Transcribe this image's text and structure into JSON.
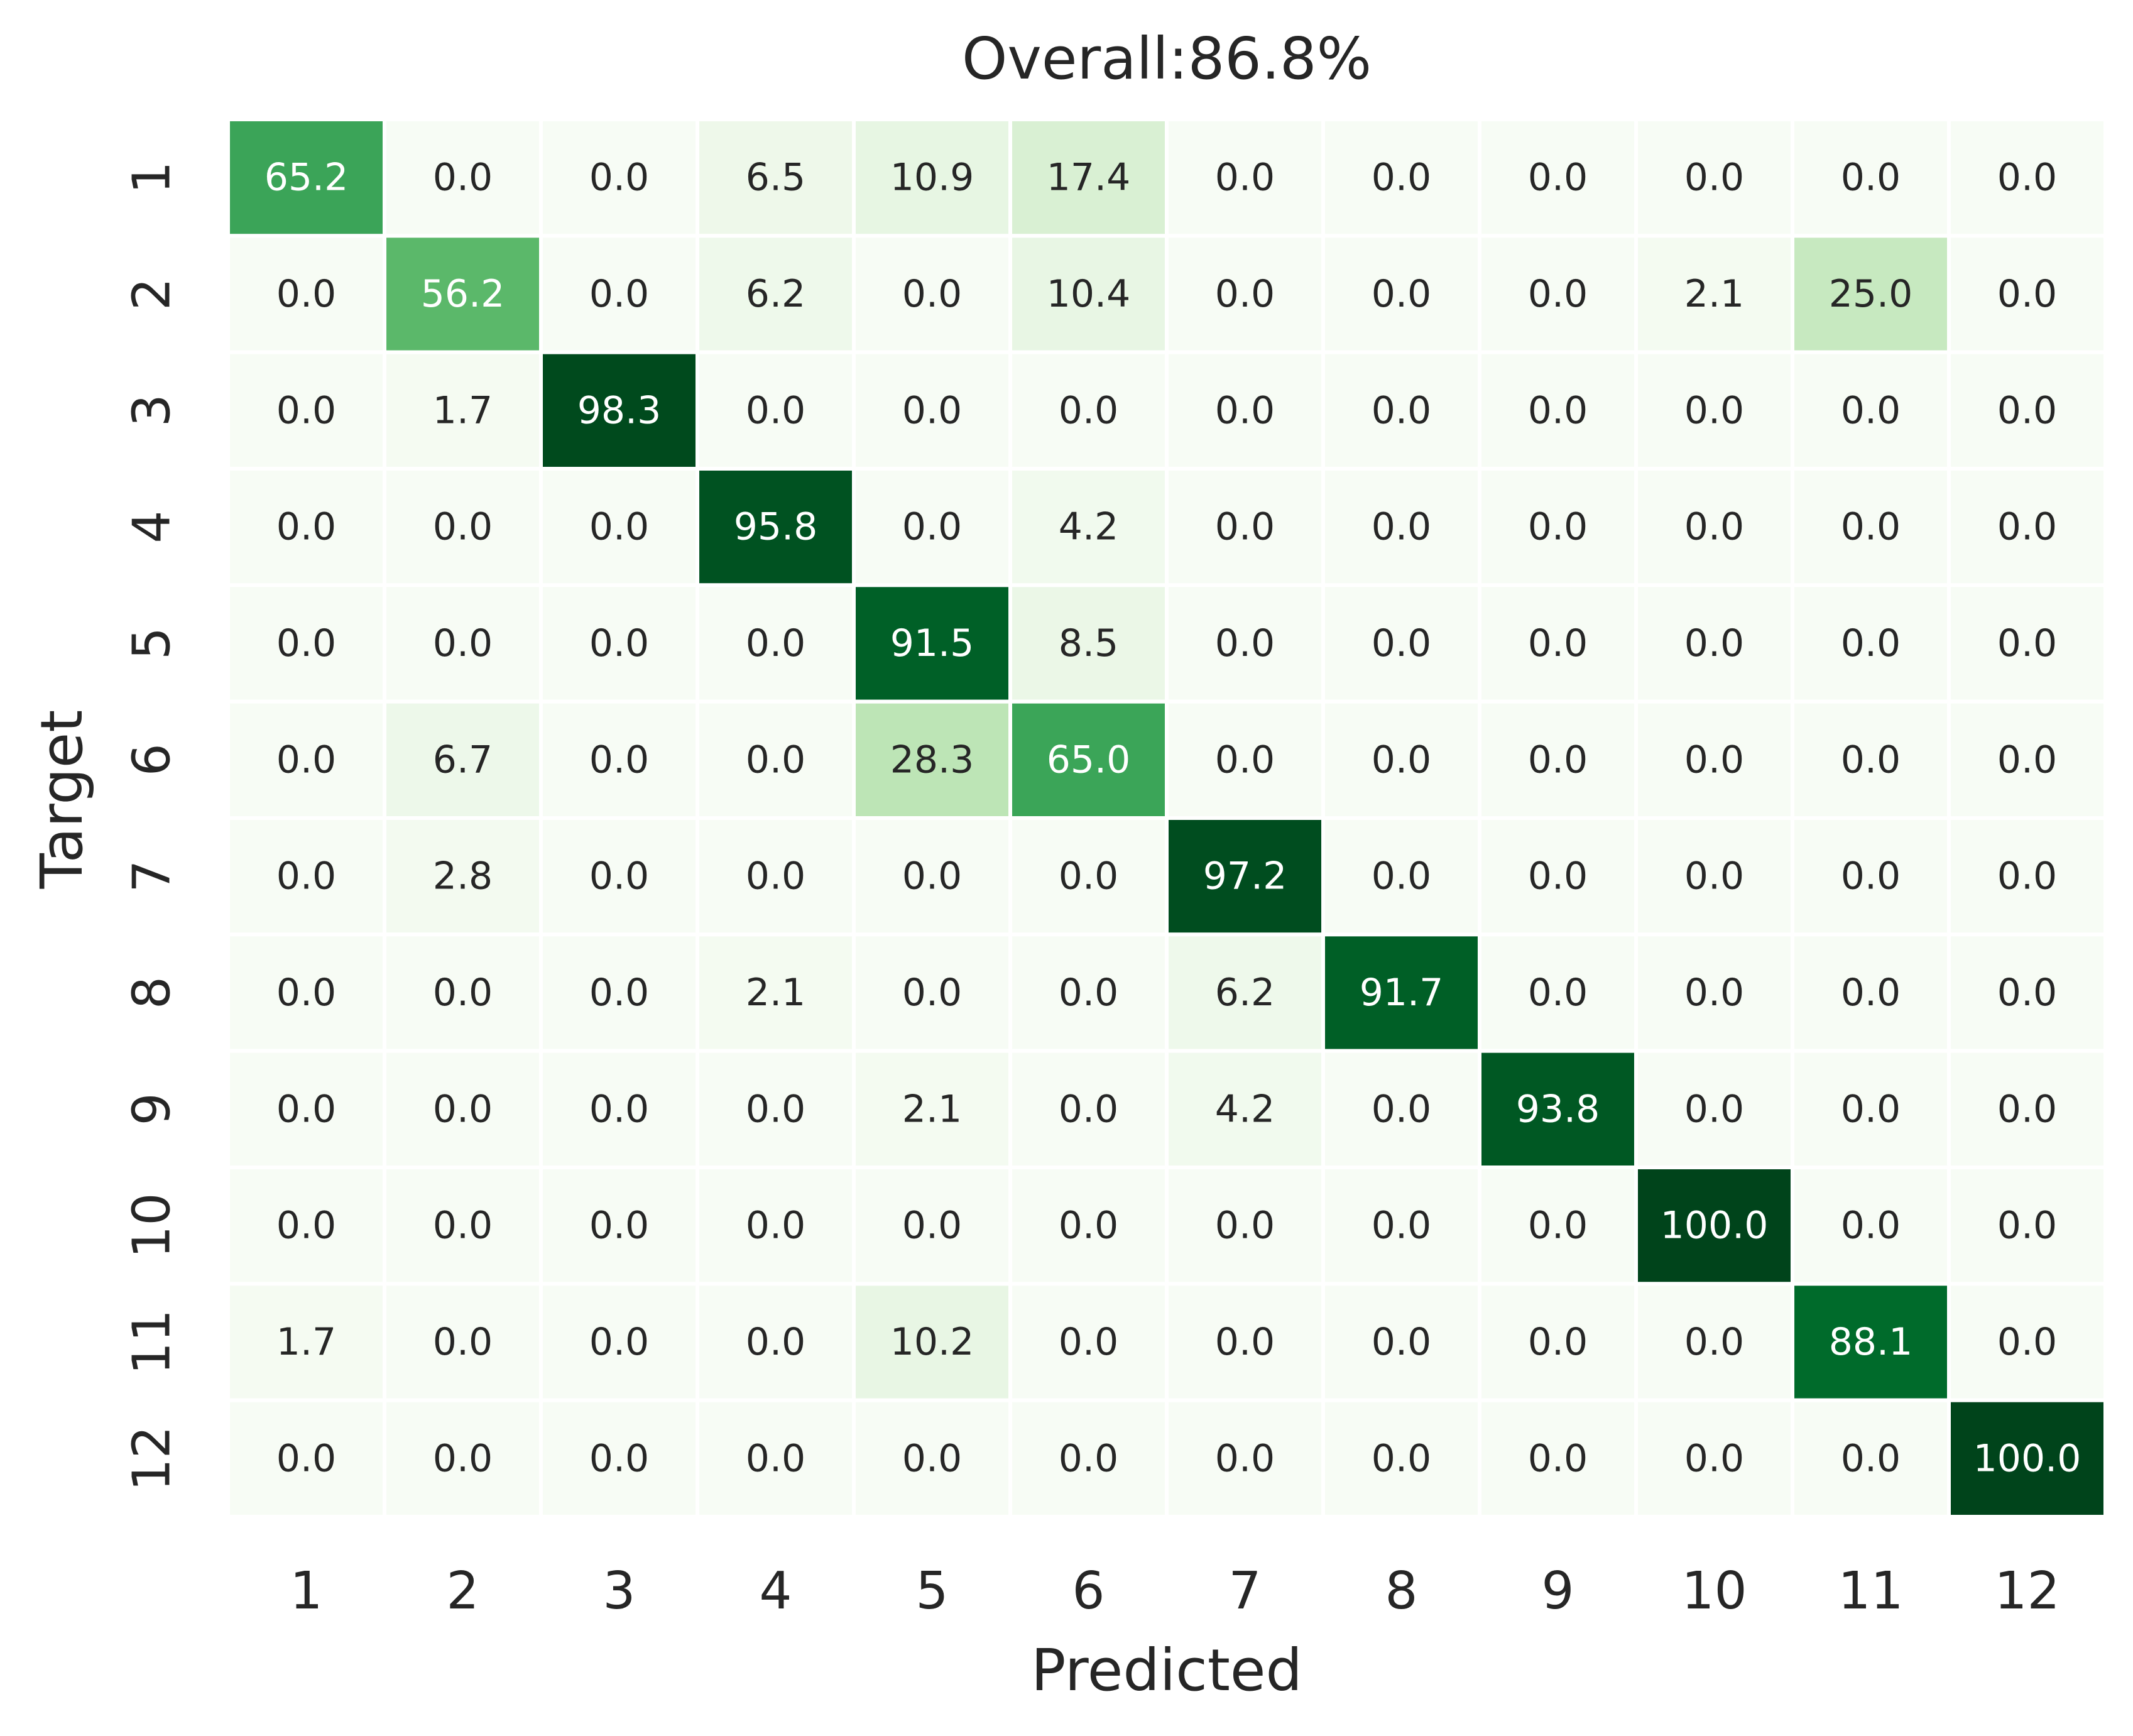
{
  "chart_data": {
    "type": "heatmap",
    "title": "Overall:86.8%",
    "xlabel": "Predicted",
    "ylabel": "Target",
    "x_categories": [
      "1",
      "2",
      "3",
      "4",
      "5",
      "6",
      "7",
      "8",
      "9",
      "10",
      "11",
      "12"
    ],
    "y_categories": [
      "1",
      "2",
      "3",
      "4",
      "5",
      "6",
      "7",
      "8",
      "9",
      "10",
      "11",
      "12"
    ],
    "value_range": [
      0,
      100
    ],
    "colormap": "Greens",
    "grid": false,
    "legend": "none",
    "values": [
      [
        65.2,
        0.0,
        0.0,
        6.5,
        10.9,
        17.4,
        0.0,
        0.0,
        0.0,
        0.0,
        0.0,
        0.0
      ],
      [
        0.0,
        56.2,
        0.0,
        6.2,
        0.0,
        10.4,
        0.0,
        0.0,
        0.0,
        2.1,
        25.0,
        0.0
      ],
      [
        0.0,
        1.7,
        98.3,
        0.0,
        0.0,
        0.0,
        0.0,
        0.0,
        0.0,
        0.0,
        0.0,
        0.0
      ],
      [
        0.0,
        0.0,
        0.0,
        95.8,
        0.0,
        4.2,
        0.0,
        0.0,
        0.0,
        0.0,
        0.0,
        0.0
      ],
      [
        0.0,
        0.0,
        0.0,
        0.0,
        91.5,
        8.5,
        0.0,
        0.0,
        0.0,
        0.0,
        0.0,
        0.0
      ],
      [
        0.0,
        6.7,
        0.0,
        0.0,
        28.3,
        65.0,
        0.0,
        0.0,
        0.0,
        0.0,
        0.0,
        0.0
      ],
      [
        0.0,
        2.8,
        0.0,
        0.0,
        0.0,
        0.0,
        97.2,
        0.0,
        0.0,
        0.0,
        0.0,
        0.0
      ],
      [
        0.0,
        0.0,
        0.0,
        2.1,
        0.0,
        0.0,
        6.2,
        91.7,
        0.0,
        0.0,
        0.0,
        0.0
      ],
      [
        0.0,
        0.0,
        0.0,
        0.0,
        2.1,
        0.0,
        4.2,
        0.0,
        93.8,
        0.0,
        0.0,
        0.0
      ],
      [
        0.0,
        0.0,
        0.0,
        0.0,
        0.0,
        0.0,
        0.0,
        0.0,
        0.0,
        100.0,
        0.0,
        0.0
      ],
      [
        1.7,
        0.0,
        0.0,
        0.0,
        10.2,
        0.0,
        0.0,
        0.0,
        0.0,
        0.0,
        88.1,
        0.0
      ],
      [
        0.0,
        0.0,
        0.0,
        0.0,
        0.0,
        0.0,
        0.0,
        0.0,
        0.0,
        0.0,
        0.0,
        100.0
      ]
    ]
  },
  "colors": {
    "cell_border": "#ffffff",
    "text_dark": "#262626",
    "text_light": "#ffffff",
    "axis_text": "#262626"
  }
}
